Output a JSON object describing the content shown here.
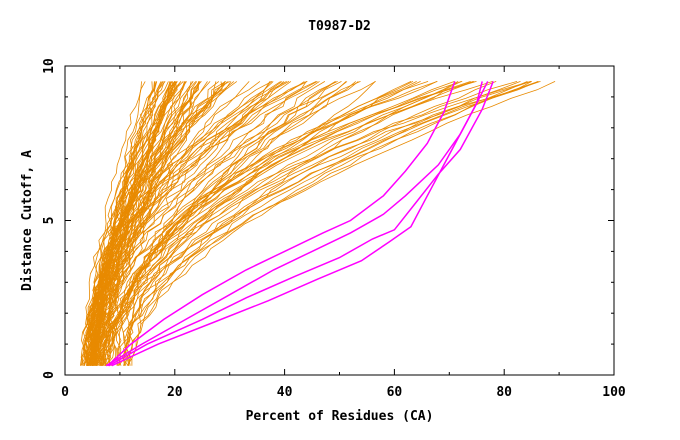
{
  "chart_data": {
    "type": "line",
    "title": "T0987-D2",
    "xlabel": "Percent of Residues (CA)",
    "ylabel": "Distance Cutoff, A",
    "xlim": [
      0,
      100
    ],
    "ylim": [
      0,
      10
    ],
    "x_ticks": [
      0,
      20,
      40,
      60,
      80,
      100
    ],
    "y_ticks": [
      0,
      5,
      10
    ],
    "grid": false,
    "colors": {
      "background_series": "#e88a00",
      "highlight_series": "#ff00ff",
      "axis": "#000000"
    },
    "y": [
      0.3,
      1.0,
      2.0,
      3.0,
      4.0,
      5.0,
      6.0,
      7.0,
      8.0,
      9.5
    ],
    "highlight_series": [
      {
        "name": "highlight-1",
        "x": [
          7.5,
          14,
          22,
          30,
          38,
          45,
          52,
          58,
          62,
          68,
          72,
          75,
          77
        ],
        "y": [
          0.3,
          1.0,
          1.8,
          2.6,
          3.4,
          4.0,
          4.6,
          5.2,
          5.8,
          6.8,
          7.8,
          8.8,
          9.5
        ]
      },
      {
        "name": "highlight-2",
        "x": [
          8,
          15,
          25,
          33,
          42,
          50,
          56,
          60,
          64,
          68,
          72,
          76,
          78
        ],
        "y": [
          0.3,
          1.0,
          1.8,
          2.5,
          3.2,
          3.8,
          4.4,
          4.7,
          5.6,
          6.5,
          7.3,
          8.6,
          9.5
        ]
      },
      {
        "name": "highlight-3",
        "x": [
          7.8,
          12,
          18,
          25,
          33,
          40,
          47,
          52,
          58,
          62,
          66,
          69,
          71
        ],
        "y": [
          0.3,
          1.0,
          1.8,
          2.6,
          3.4,
          4.0,
          4.6,
          5.0,
          5.8,
          6.6,
          7.5,
          8.5,
          9.5
        ]
      },
      {
        "name": "highlight-4",
        "x": [
          8.5,
          17,
          27,
          37,
          46,
          54,
          59,
          63,
          66,
          69,
          72,
          75,
          76
        ],
        "y": [
          0.3,
          1.0,
          1.7,
          2.4,
          3.1,
          3.7,
          4.3,
          4.8,
          5.8,
          6.8,
          7.8,
          8.8,
          9.5
        ]
      }
    ],
    "background_series_count": 120
  }
}
